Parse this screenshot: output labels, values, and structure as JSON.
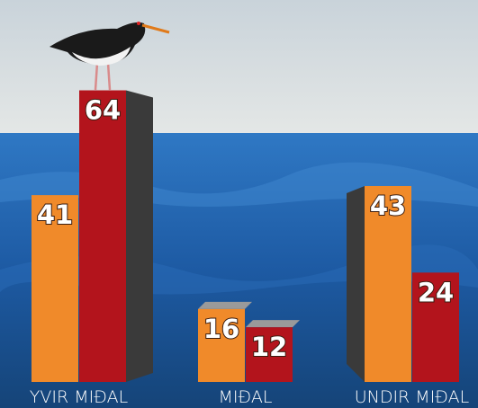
{
  "chart_data": {
    "type": "bar",
    "categories": [
      "YVIR MIÐAL",
      "MIÐAL",
      "UNDIR MIÐAL"
    ],
    "series": [
      {
        "color": "#f08a2a",
        "values": [
          41,
          16,
          43
        ]
      },
      {
        "color": "#b3141c",
        "values": [
          64,
          12,
          24
        ]
      }
    ]
  }
}
